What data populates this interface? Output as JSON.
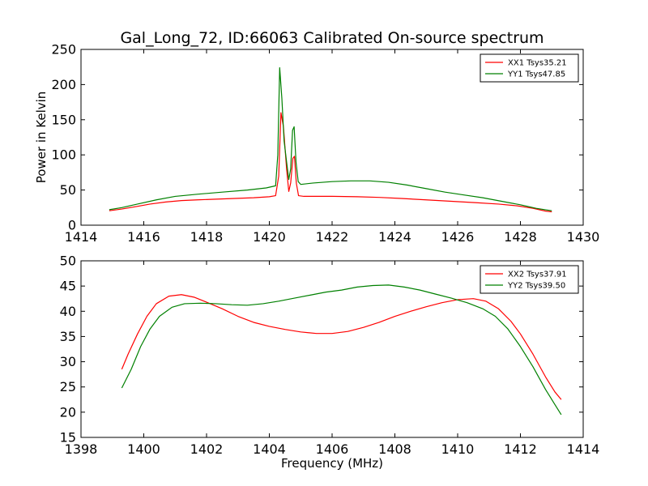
{
  "figure": {
    "title": "Gal_Long_72, ID:66063 Calibrated On-source spectrum"
  },
  "chart_data": [
    {
      "type": "line",
      "title": "Gal_Long_72, ID:66063 Calibrated On-source spectrum",
      "xlabel": "",
      "ylabel": "Power in Kelvin",
      "xlim": [
        1414,
        1430
      ],
      "ylim": [
        0,
        250
      ],
      "xticks": [
        1414,
        1416,
        1418,
        1420,
        1422,
        1424,
        1426,
        1428,
        1430
      ],
      "yticks": [
        0,
        50,
        100,
        150,
        200,
        250
      ],
      "grid": false,
      "legend_position": "top-right",
      "series": [
        {
          "name": "XX1 Tsys35.21",
          "color": "#ff0000",
          "points": [
            [
              1414.9,
              20.5
            ],
            [
              1415.3,
              23
            ],
            [
              1415.7,
              26
            ],
            [
              1416.2,
              30
            ],
            [
              1416.7,
              33
            ],
            [
              1417.2,
              35
            ],
            [
              1417.7,
              36
            ],
            [
              1418.3,
              37
            ],
            [
              1418.9,
              38
            ],
            [
              1419.5,
              39
            ],
            [
              1420.0,
              40.5
            ],
            [
              1420.2,
              42
            ],
            [
              1420.3,
              70
            ],
            [
              1420.37,
              160
            ],
            [
              1420.45,
              140
            ],
            [
              1420.55,
              80
            ],
            [
              1420.62,
              48
            ],
            [
              1420.68,
              60
            ],
            [
              1420.75,
              95
            ],
            [
              1420.8,
              98
            ],
            [
              1420.86,
              60
            ],
            [
              1420.93,
              42
            ],
            [
              1421.1,
              41
            ],
            [
              1421.5,
              41
            ],
            [
              1422.0,
              41
            ],
            [
              1422.8,
              40.5
            ],
            [
              1423.5,
              39.5
            ],
            [
              1424.2,
              38
            ],
            [
              1425.0,
              36
            ],
            [
              1425.8,
              34
            ],
            [
              1426.6,
              32
            ],
            [
              1427.3,
              30
            ],
            [
              1427.9,
              27.5
            ],
            [
              1428.4,
              24
            ],
            [
              1428.8,
              20
            ],
            [
              1429.0,
              19
            ]
          ]
        },
        {
          "name": "YY1 Tsys47.85",
          "color": "#008000",
          "points": [
            [
              1414.9,
              22
            ],
            [
              1415.3,
              25
            ],
            [
              1415.8,
              30
            ],
            [
              1416.4,
              36
            ],
            [
              1417.0,
              41
            ],
            [
              1417.7,
              44
            ],
            [
              1418.5,
              47
            ],
            [
              1419.3,
              50
            ],
            [
              1419.9,
              53
            ],
            [
              1420.2,
              56
            ],
            [
              1420.27,
              100
            ],
            [
              1420.33,
              224
            ],
            [
              1420.4,
              180
            ],
            [
              1420.47,
              120
            ],
            [
              1420.55,
              90
            ],
            [
              1420.62,
              65
            ],
            [
              1420.68,
              80
            ],
            [
              1420.74,
              135
            ],
            [
              1420.79,
              140
            ],
            [
              1420.85,
              90
            ],
            [
              1420.92,
              62
            ],
            [
              1421.0,
              58
            ],
            [
              1421.4,
              60
            ],
            [
              1422.0,
              62
            ],
            [
              1422.6,
              63
            ],
            [
              1423.2,
              63
            ],
            [
              1423.8,
              61
            ],
            [
              1424.4,
              57
            ],
            [
              1425.0,
              52
            ],
            [
              1425.6,
              47
            ],
            [
              1426.2,
              43
            ],
            [
              1426.8,
              39
            ],
            [
              1427.4,
              34
            ],
            [
              1428.0,
              29
            ],
            [
              1428.5,
              24
            ],
            [
              1429.0,
              20.5
            ]
          ]
        }
      ]
    },
    {
      "type": "line",
      "title": "",
      "xlabel": "Frequency (MHz)",
      "ylabel": "",
      "xlim": [
        1398,
        1414
      ],
      "ylim": [
        15,
        50
      ],
      "xticks": [
        1398,
        1400,
        1402,
        1404,
        1406,
        1408,
        1410,
        1412,
        1414
      ],
      "yticks": [
        15,
        20,
        25,
        30,
        35,
        40,
        45,
        50
      ],
      "grid": false,
      "legend_position": "top-right",
      "series": [
        {
          "name": "XX2 Tsys37.91",
          "color": "#ff0000",
          "points": [
            [
              1399.3,
              28.5
            ],
            [
              1399.5,
              31.5
            ],
            [
              1399.8,
              35.5
            ],
            [
              1400.1,
              39
            ],
            [
              1400.4,
              41.5
            ],
            [
              1400.8,
              43
            ],
            [
              1401.2,
              43.3
            ],
            [
              1401.6,
              42.8
            ],
            [
              1402.0,
              41.8
            ],
            [
              1402.5,
              40.5
            ],
            [
              1403.0,
              39
            ],
            [
              1403.5,
              37.8
            ],
            [
              1404.0,
              37
            ],
            [
              1404.5,
              36.4
            ],
            [
              1405.0,
              35.9
            ],
            [
              1405.5,
              35.6
            ],
            [
              1406.0,
              35.6
            ],
            [
              1406.5,
              36
            ],
            [
              1407.0,
              36.8
            ],
            [
              1407.5,
              37.8
            ],
            [
              1408.0,
              39
            ],
            [
              1408.5,
              40
            ],
            [
              1409.0,
              40.9
            ],
            [
              1409.5,
              41.7
            ],
            [
              1410.0,
              42.3
            ],
            [
              1410.5,
              42.5
            ],
            [
              1410.9,
              42
            ],
            [
              1411.3,
              40.5
            ],
            [
              1411.7,
              38
            ],
            [
              1412.0,
              35.5
            ],
            [
              1412.4,
              31.5
            ],
            [
              1412.8,
              27
            ],
            [
              1413.1,
              24
            ],
            [
              1413.3,
              22.5
            ]
          ]
        },
        {
          "name": "YY2 Tsys39.50",
          "color": "#008000",
          "points": [
            [
              1399.3,
              24.8
            ],
            [
              1399.6,
              28.5
            ],
            [
              1399.9,
              33
            ],
            [
              1400.2,
              36.5
            ],
            [
              1400.5,
              39
            ],
            [
              1400.9,
              40.8
            ],
            [
              1401.3,
              41.5
            ],
            [
              1401.8,
              41.6
            ],
            [
              1402.3,
              41.5
            ],
            [
              1402.8,
              41.3
            ],
            [
              1403.3,
              41.2
            ],
            [
              1403.8,
              41.5
            ],
            [
              1404.3,
              42
            ],
            [
              1404.8,
              42.6
            ],
            [
              1405.3,
              43.2
            ],
            [
              1405.8,
              43.8
            ],
            [
              1406.3,
              44.2
            ],
            [
              1406.8,
              44.8
            ],
            [
              1407.3,
              45.1
            ],
            [
              1407.8,
              45.2
            ],
            [
              1408.3,
              44.8
            ],
            [
              1408.8,
              44.2
            ],
            [
              1409.3,
              43.4
            ],
            [
              1409.8,
              42.6
            ],
            [
              1410.3,
              41.7
            ],
            [
              1410.8,
              40.5
            ],
            [
              1411.2,
              39
            ],
            [
              1411.6,
              36.5
            ],
            [
              1412.0,
              33
            ],
            [
              1412.4,
              29
            ],
            [
              1412.8,
              24.5
            ],
            [
              1413.1,
              21.5
            ],
            [
              1413.3,
              19.5
            ]
          ]
        }
      ]
    }
  ]
}
